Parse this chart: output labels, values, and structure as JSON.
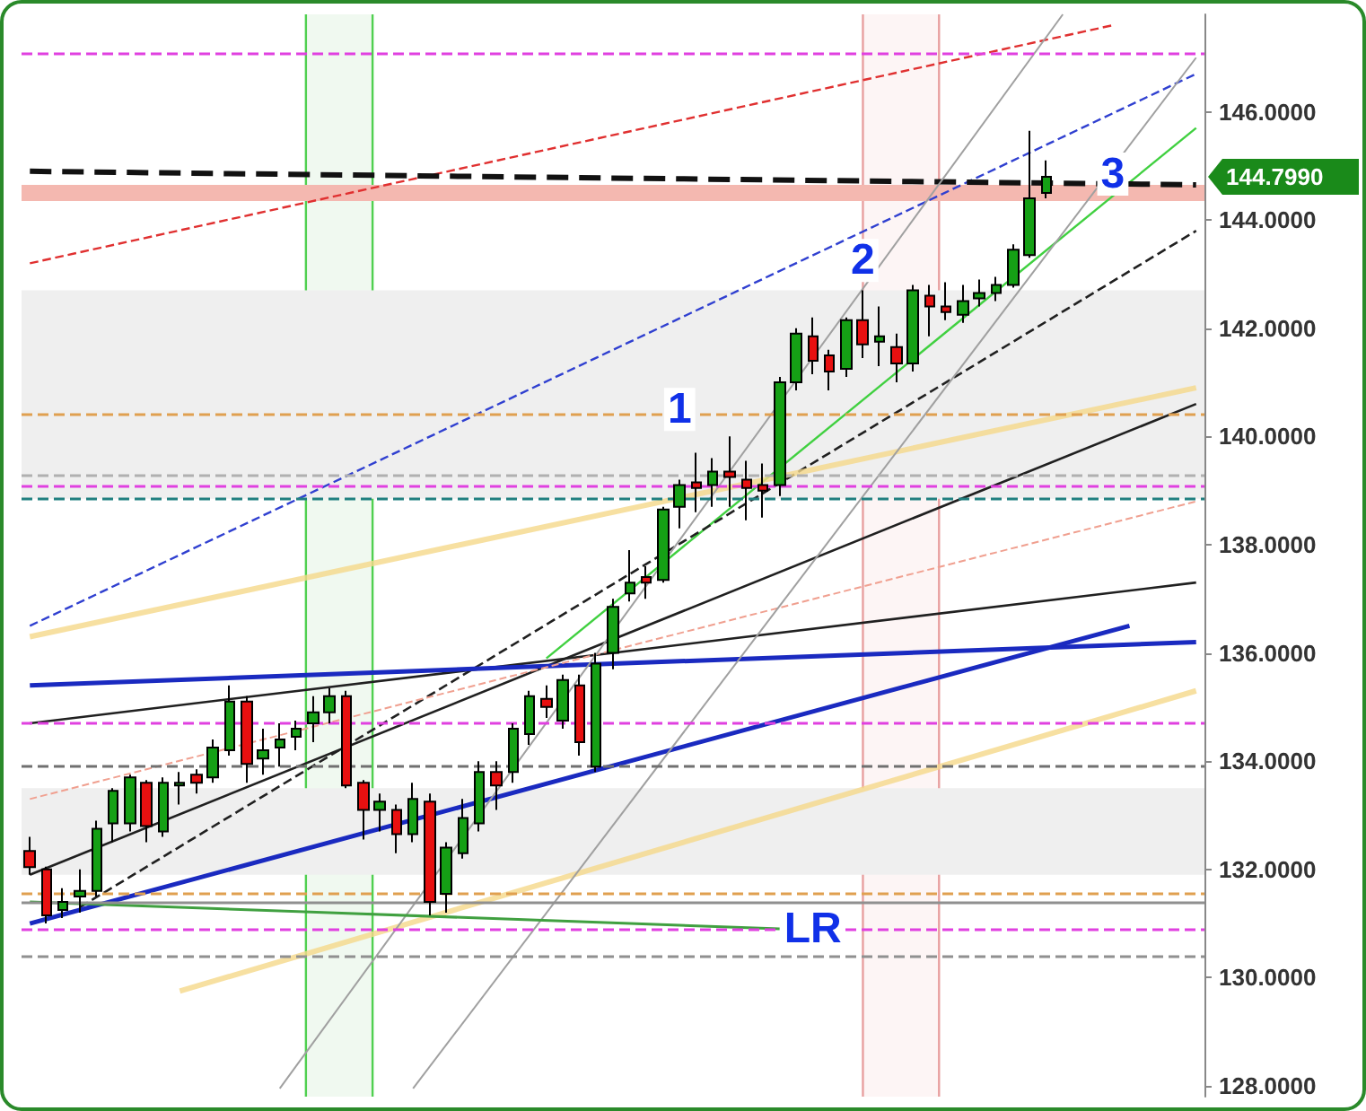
{
  "chart_data": {
    "type": "candlestick",
    "categories": [
      null,
      null,
      null,
      null,
      null,
      null,
      null,
      null,
      null,
      null,
      null,
      null,
      null,
      null,
      null,
      null,
      null,
      null,
      null,
      null,
      null,
      null,
      null,
      null,
      null,
      null,
      null,
      null,
      null,
      null,
      null,
      null,
      null,
      null,
      null,
      null,
      null,
      null,
      null,
      null,
      null,
      null,
      null,
      null,
      null,
      null,
      null,
      null,
      null,
      null,
      null,
      null,
      null,
      null,
      null,
      null,
      null,
      null,
      null,
      null,
      null,
      null,
      null,
      null,
      null,
      null,
      null,
      null,
      null,
      null,
      null
    ],
    "ylim": [
      127.8,
      147.8
    ],
    "yticks": [
      {
        "value": 128,
        "label": "128.0000"
      },
      {
        "value": 130,
        "label": "130.0000"
      },
      {
        "value": 132,
        "label": "132.0000"
      },
      {
        "value": 134,
        "label": "134.0000"
      },
      {
        "value": 136,
        "label": "136.0000"
      },
      {
        "value": 138,
        "label": "138.0000"
      },
      {
        "value": 140,
        "label": "140.0000"
      },
      {
        "value": 142,
        "label": "142.0000"
      },
      {
        "value": 144,
        "label": "144.0000"
      },
      {
        "value": 146,
        "label": "146.0000"
      }
    ],
    "tick_labels": "y",
    "grid": false,
    "series": [
      {
        "ohlc": [
          [
            132.34,
            132.6,
            131.9,
            132.04
          ],
          [
            132.0,
            132.05,
            131.0,
            131.15
          ],
          [
            131.25,
            131.65,
            131.1,
            131.4
          ],
          [
            131.5,
            132.0,
            131.2,
            131.6
          ],
          [
            131.6,
            132.9,
            131.5,
            132.75
          ],
          [
            132.85,
            133.5,
            132.5,
            133.45
          ],
          [
            132.85,
            133.75,
            132.7,
            133.7
          ],
          [
            133.6,
            133.65,
            132.5,
            132.8
          ],
          [
            132.7,
            133.7,
            132.6,
            133.6
          ],
          [
            133.55,
            133.8,
            133.2,
            133.6
          ],
          [
            133.75,
            133.85,
            133.4,
            133.6
          ],
          [
            133.7,
            134.4,
            133.6,
            134.25
          ],
          [
            134.2,
            135.4,
            134.1,
            135.1
          ],
          [
            135.1,
            135.2,
            133.6,
            133.95
          ],
          [
            134.05,
            134.6,
            133.75,
            134.2
          ],
          [
            134.25,
            134.7,
            133.9,
            134.4
          ],
          [
            134.45,
            134.75,
            134.2,
            134.6
          ],
          [
            134.7,
            135.2,
            134.35,
            134.9
          ],
          [
            134.9,
            135.35,
            134.7,
            135.2
          ],
          [
            135.2,
            135.3,
            133.5,
            133.55
          ],
          [
            133.6,
            133.65,
            132.55,
            133.1
          ],
          [
            133.1,
            133.4,
            132.7,
            133.25
          ],
          [
            133.1,
            133.2,
            132.3,
            132.65
          ],
          [
            132.65,
            133.6,
            132.5,
            133.3
          ],
          [
            133.25,
            133.4,
            131.15,
            131.4
          ],
          [
            131.55,
            132.5,
            131.2,
            132.4
          ],
          [
            132.3,
            133.3,
            132.2,
            132.95
          ],
          [
            132.85,
            134.0,
            132.7,
            133.8
          ],
          [
            133.8,
            134.0,
            133.1,
            133.55
          ],
          [
            133.8,
            134.7,
            133.6,
            134.6
          ],
          [
            134.5,
            135.3,
            134.3,
            135.2
          ],
          [
            135.15,
            135.4,
            134.8,
            135.0
          ],
          [
            134.75,
            135.6,
            134.6,
            135.5
          ],
          [
            135.4,
            135.6,
            134.1,
            134.35
          ],
          [
            133.9,
            136.0,
            133.8,
            135.8
          ],
          [
            136.0,
            137.0,
            135.7,
            136.85
          ],
          [
            137.1,
            137.9,
            136.95,
            137.3
          ],
          [
            137.4,
            137.6,
            137.0,
            137.3
          ],
          [
            137.35,
            138.7,
            137.3,
            138.65
          ],
          [
            138.7,
            139.2,
            138.3,
            139.1
          ],
          [
            139.15,
            139.7,
            138.6,
            139.05
          ],
          [
            139.1,
            139.6,
            138.7,
            139.35
          ],
          [
            139.35,
            140.0,
            138.7,
            139.25
          ],
          [
            139.2,
            139.55,
            138.45,
            139.05
          ],
          [
            139.1,
            139.5,
            138.5,
            139.0
          ],
          [
            139.1,
            141.1,
            138.9,
            141.0
          ],
          [
            141.0,
            142.0,
            140.85,
            141.9
          ],
          [
            141.85,
            142.2,
            141.15,
            141.4
          ],
          [
            141.5,
            141.6,
            140.85,
            141.2
          ],
          [
            141.25,
            142.2,
            141.1,
            142.15
          ],
          [
            142.15,
            142.7,
            141.45,
            141.7
          ],
          [
            141.75,
            142.4,
            141.3,
            141.85
          ],
          [
            141.65,
            141.9,
            141.0,
            141.35
          ],
          [
            141.35,
            142.8,
            141.2,
            142.7
          ],
          [
            142.6,
            142.8,
            141.85,
            142.4
          ],
          [
            142.4,
            142.85,
            142.15,
            142.3
          ],
          [
            142.25,
            142.8,
            142.1,
            142.5
          ],
          [
            142.55,
            142.9,
            142.4,
            142.65
          ],
          [
            142.65,
            142.95,
            142.5,
            142.8
          ],
          [
            142.8,
            143.55,
            142.75,
            143.45
          ],
          [
            143.35,
            145.65,
            143.3,
            144.4
          ],
          [
            144.5,
            145.1,
            144.4,
            144.8
          ],
          null,
          null,
          null,
          null,
          null,
          null,
          null,
          null,
          null
        ]
      },
      {
        "type": "line",
        "color": "#e03030",
        "line_style": "dashed",
        "values": [
          143.2,
          null,
          null,
          null,
          null,
          null,
          null,
          null,
          null,
          null,
          null,
          null,
          null,
          null,
          null,
          null,
          null,
          null,
          null,
          null,
          null,
          null,
          null,
          null,
          null,
          null,
          null,
          null,
          null,
          null,
          null,
          null,
          null,
          null,
          null,
          null,
          null,
          null,
          null,
          null,
          null,
          null,
          null,
          null,
          null,
          null,
          null,
          null,
          null,
          null,
          null,
          null,
          null,
          null,
          null,
          null,
          null,
          null,
          null,
          null,
          null,
          null,
          null,
          null,
          null,
          147.6,
          null,
          null,
          null,
          null,
          null
        ]
      },
      {
        "type": "line",
        "color": "#3040d0",
        "line_style": "dashed",
        "values": [
          136.5,
          null,
          null,
          null,
          null,
          null,
          null,
          null,
          null,
          null,
          null,
          null,
          null,
          null,
          null,
          null,
          null,
          null,
          null,
          null,
          null,
          null,
          null,
          null,
          null,
          null,
          null,
          null,
          null,
          null,
          null,
          null,
          null,
          null,
          null,
          null,
          null,
          null,
          null,
          null,
          null,
          null,
          null,
          null,
          null,
          null,
          null,
          null,
          null,
          null,
          null,
          null,
          null,
          null,
          null,
          null,
          null,
          null,
          null,
          null,
          null,
          null,
          null,
          null,
          null,
          null,
          null,
          null,
          null,
          null,
          146.7
        ]
      },
      {
        "type": "line",
        "color": "#40d040",
        "line_style": "solid",
        "values": [
          null,
          null,
          null,
          null,
          null,
          null,
          null,
          null,
          null,
          null,
          null,
          null,
          null,
          null,
          null,
          null,
          null,
          null,
          null,
          null,
          null,
          null,
          null,
          null,
          null,
          null,
          null,
          null,
          null,
          null,
          null,
          135.9,
          null,
          null,
          null,
          null,
          null,
          null,
          null,
          null,
          null,
          null,
          null,
          null,
          null,
          null,
          null,
          null,
          null,
          null,
          null,
          null,
          null,
          null,
          null,
          null,
          null,
          null,
          null,
          null,
          null,
          null,
          null,
          null,
          null,
          null,
          null,
          null,
          null,
          null,
          145.7
        ]
      },
      {
        "type": "line",
        "color": "#202020",
        "line_style": "dashed",
        "values": [
          null,
          null,
          null,
          131.3,
          null,
          null,
          null,
          null,
          null,
          null,
          null,
          null,
          null,
          null,
          null,
          null,
          null,
          null,
          null,
          null,
          null,
          null,
          null,
          null,
          null,
          null,
          null,
          null,
          null,
          null,
          null,
          null,
          null,
          null,
          null,
          null,
          null,
          null,
          null,
          null,
          null,
          null,
          null,
          null,
          null,
          null,
          null,
          null,
          null,
          null,
          null,
          null,
          null,
          null,
          null,
          null,
          null,
          null,
          null,
          null,
          null,
          null,
          null,
          null,
          null,
          null,
          null,
          null,
          null,
          null,
          143.8
        ]
      },
      {
        "type": "line",
        "color": "#202020",
        "line_style": "solid",
        "values": [
          131.9,
          null,
          null,
          null,
          null,
          null,
          null,
          null,
          null,
          null,
          null,
          null,
          null,
          null,
          null,
          null,
          null,
          null,
          null,
          null,
          null,
          null,
          null,
          null,
          null,
          null,
          null,
          null,
          null,
          null,
          null,
          null,
          null,
          null,
          null,
          null,
          null,
          null,
          null,
          null,
          null,
          null,
          null,
          null,
          null,
          null,
          null,
          null,
          null,
          null,
          null,
          null,
          null,
          null,
          null,
          null,
          null,
          null,
          null,
          null,
          null,
          null,
          null,
          null,
          null,
          null,
          null,
          null,
          null,
          null,
          140.6
        ]
      },
      {
        "type": "line",
        "color": "#202020",
        "line_style": "solid",
        "values": [
          134.7,
          null,
          null,
          null,
          null,
          null,
          null,
          null,
          null,
          null,
          null,
          null,
          null,
          null,
          null,
          null,
          null,
          null,
          null,
          null,
          null,
          null,
          null,
          null,
          null,
          null,
          null,
          null,
          null,
          null,
          null,
          null,
          null,
          null,
          null,
          null,
          null,
          null,
          null,
          null,
          null,
          null,
          null,
          null,
          null,
          null,
          null,
          null,
          null,
          null,
          null,
          null,
          null,
          null,
          null,
          null,
          null,
          null,
          null,
          null,
          null,
          null,
          null,
          null,
          null,
          null,
          null,
          null,
          null,
          null,
          137.3
        ]
      },
      {
        "type": "line",
        "color": "#f5d88a",
        "line_style": "solid",
        "values": [
          136.3,
          null,
          null,
          null,
          null,
          null,
          null,
          null,
          null,
          null,
          null,
          null,
          null,
          null,
          null,
          null,
          null,
          null,
          null,
          null,
          null,
          null,
          null,
          null,
          null,
          null,
          null,
          null,
          null,
          null,
          null,
          null,
          null,
          null,
          null,
          null,
          null,
          null,
          null,
          null,
          null,
          null,
          null,
          null,
          null,
          null,
          null,
          null,
          null,
          null,
          null,
          null,
          null,
          null,
          null,
          null,
          null,
          null,
          null,
          null,
          null,
          null,
          null,
          null,
          null,
          null,
          null,
          null,
          null,
          null,
          140.9
        ]
      },
      {
        "type": "line",
        "color": "#f5d88a",
        "line_style": "solid",
        "values": [
          null,
          null,
          null,
          null,
          null,
          null,
          null,
          null,
          null,
          129.75,
          null,
          null,
          null,
          null,
          null,
          null,
          null,
          null,
          null,
          null,
          null,
          null,
          null,
          null,
          null,
          null,
          null,
          null,
          null,
          null,
          null,
          null,
          null,
          null,
          null,
          null,
          null,
          null,
          null,
          null,
          null,
          null,
          null,
          null,
          null,
          null,
          null,
          null,
          null,
          null,
          null,
          null,
          null,
          null,
          null,
          null,
          null,
          null,
          null,
          null,
          null,
          null,
          null,
          null,
          null,
          null,
          null,
          null,
          null,
          null,
          135.3
        ]
      },
      {
        "type": "line",
        "color": "#1a2ac0",
        "line_style": "solid",
        "values": [
          135.4,
          null,
          null,
          null,
          null,
          null,
          null,
          null,
          null,
          null,
          null,
          null,
          null,
          null,
          null,
          null,
          null,
          null,
          null,
          null,
          null,
          null,
          null,
          null,
          null,
          null,
          null,
          null,
          null,
          null,
          null,
          null,
          null,
          null,
          null,
          null,
          null,
          null,
          null,
          null,
          null,
          null,
          null,
          null,
          null,
          null,
          null,
          null,
          null,
          null,
          null,
          null,
          null,
          null,
          null,
          null,
          null,
          null,
          null,
          null,
          null,
          null,
          null,
          null,
          null,
          null,
          null,
          null,
          null,
          null,
          136.2
        ]
      },
      {
        "type": "line",
        "color": "#1a2ac0",
        "line_style": "solid",
        "values": [
          131.0,
          null,
          null,
          null,
          null,
          null,
          null,
          null,
          null,
          null,
          null,
          null,
          null,
          null,
          null,
          null,
          null,
          null,
          null,
          null,
          null,
          null,
          null,
          null,
          null,
          null,
          null,
          null,
          null,
          null,
          null,
          null,
          null,
          null,
          null,
          null,
          null,
          null,
          null,
          null,
          null,
          null,
          null,
          null,
          null,
          null,
          null,
          null,
          null,
          null,
          null,
          null,
          null,
          null,
          null,
          null,
          null,
          null,
          null,
          null,
          null,
          null,
          null,
          null,
          null,
          null,
          136.5,
          null,
          null,
          null,
          null
        ]
      },
      {
        "type": "line",
        "color": "#111111",
        "line_style": "dashed",
        "values": [
          144.9,
          null,
          null,
          null,
          null,
          null,
          null,
          null,
          null,
          null,
          null,
          null,
          null,
          null,
          null,
          null,
          null,
          null,
          null,
          null,
          null,
          null,
          null,
          null,
          null,
          null,
          null,
          null,
          null,
          null,
          null,
          null,
          null,
          null,
          null,
          null,
          null,
          null,
          null,
          null,
          null,
          null,
          null,
          null,
          null,
          null,
          null,
          null,
          null,
          null,
          null,
          null,
          null,
          null,
          null,
          null,
          null,
          null,
          null,
          null,
          null,
          null,
          null,
          null,
          null,
          null,
          null,
          null,
          null,
          null,
          144.65
        ]
      },
      {
        "type": "line",
        "color": "#f0a090",
        "line_style": "dashed",
        "values": [
          133.3,
          null,
          null,
          null,
          null,
          null,
          null,
          null,
          null,
          null,
          null,
          null,
          null,
          null,
          null,
          null,
          null,
          null,
          null,
          null,
          null,
          null,
          null,
          null,
          null,
          null,
          null,
          null,
          null,
          null,
          null,
          null,
          null,
          null,
          null,
          null,
          null,
          null,
          null,
          null,
          null,
          null,
          null,
          null,
          null,
          null,
          null,
          null,
          null,
          null,
          null,
          null,
          null,
          null,
          null,
          null,
          null,
          null,
          null,
          null,
          null,
          null,
          null,
          null,
          null,
          null,
          null,
          null,
          null,
          null,
          138.8
        ]
      },
      {
        "type": "line",
        "color": "#a0a0a0",
        "line_style": "solid",
        "values": [
          null,
          null,
          null,
          null,
          null,
          null,
          null,
          null,
          null,
          null,
          null,
          null,
          null,
          null,
          null,
          127.95,
          null,
          null,
          null,
          null,
          null,
          null,
          null,
          null,
          null,
          null,
          null,
          null,
          null,
          null,
          null,
          null,
          null,
          null,
          null,
          null,
          null,
          null,
          null,
          null,
          null,
          null,
          null,
          null,
          null,
          null,
          null,
          null,
          null,
          null,
          null,
          null,
          null,
          null,
          null,
          null,
          null,
          null,
          null,
          null,
          null,
          null,
          147.8,
          null,
          null,
          null,
          null,
          null,
          null,
          null,
          null
        ]
      },
      {
        "type": "line",
        "color": "#a0a0a0",
        "line_style": "solid",
        "values": [
          null,
          null,
          null,
          null,
          null,
          null,
          null,
          null,
          null,
          null,
          null,
          null,
          null,
          null,
          null,
          null,
          null,
          null,
          null,
          null,
          null,
          null,
          null,
          127.95,
          null,
          null,
          null,
          null,
          null,
          null,
          null,
          null,
          null,
          null,
          null,
          null,
          null,
          null,
          null,
          null,
          null,
          null,
          null,
          null,
          null,
          null,
          null,
          null,
          null,
          null,
          null,
          null,
          null,
          null,
          null,
          null,
          null,
          null,
          null,
          null,
          null,
          null,
          null,
          null,
          null,
          null,
          null,
          null,
          null,
          null,
          147.0
        ]
      },
      {
        "type": "line",
        "color": "#40a040",
        "line_style": "solid",
        "values": [
          131.4,
          null,
          null,
          null,
          null,
          null,
          null,
          null,
          null,
          null,
          null,
          null,
          null,
          null,
          null,
          null,
          null,
          null,
          null,
          null,
          null,
          null,
          null,
          null,
          null,
          null,
          null,
          null,
          null,
          null,
          null,
          null,
          null,
          null,
          null,
          null,
          null,
          null,
          null,
          null,
          null,
          null,
          null,
          null,
          null,
          130.9,
          null,
          null,
          null,
          null,
          null,
          null,
          null,
          null,
          null,
          null,
          null,
          null,
          null,
          null,
          null,
          null,
          null,
          null,
          null,
          null,
          null,
          null,
          null,
          null,
          null
        ]
      }
    ],
    "ref_lines": [
      {
        "axis": "y",
        "value": 147.08,
        "color": "#e040e0",
        "line_style": "dashed"
      },
      {
        "axis": "y",
        "value": 140.42,
        "color": "#e0a050",
        "line_style": "dashed"
      },
      {
        "axis": "y",
        "value": 139.27,
        "color": "#b0b0b0",
        "line_style": "dashed"
      },
      {
        "axis": "y",
        "value": 139.1,
        "color": "#e040e0",
        "line_style": "dashed"
      },
      {
        "axis": "y",
        "value": 138.85,
        "color": "#208080",
        "line_style": "dashed"
      },
      {
        "axis": "y",
        "value": 134.7,
        "color": "#e040e0",
        "line_style": "dashed"
      },
      {
        "axis": "y",
        "value": 133.9,
        "color": "#707070",
        "line_style": "dashed"
      },
      {
        "axis": "y",
        "value": 131.55,
        "color": "#e0a050",
        "line_style": "dashed"
      },
      {
        "axis": "y",
        "value": 131.4,
        "color": "#909090",
        "line_style": "solid"
      },
      {
        "axis": "y",
        "value": 130.9,
        "color": "#e040e0",
        "line_style": "dashed"
      },
      {
        "axis": "y",
        "value": 130.4,
        "color": "#909090",
        "line_style": "dashed"
      }
    ],
    "bands": [
      {
        "axis": "y",
        "from": 138.85,
        "to": 142.7,
        "color": "#efefef"
      },
      {
        "axis": "y",
        "from": 131.9,
        "to": 133.5,
        "color": "#efefef"
      },
      {
        "axis": "y",
        "from": 144.35,
        "to": 144.65,
        "color": "#f4b8b0"
      }
    ],
    "annotations": [
      {
        "text": "1",
        "y": 140.5
      },
      {
        "text": "2",
        "y": 143.25
      },
      {
        "text": "3",
        "y": 144.85
      },
      {
        "text": "LR",
        "y": 130.9
      },
      "144.7990"
    ]
  }
}
